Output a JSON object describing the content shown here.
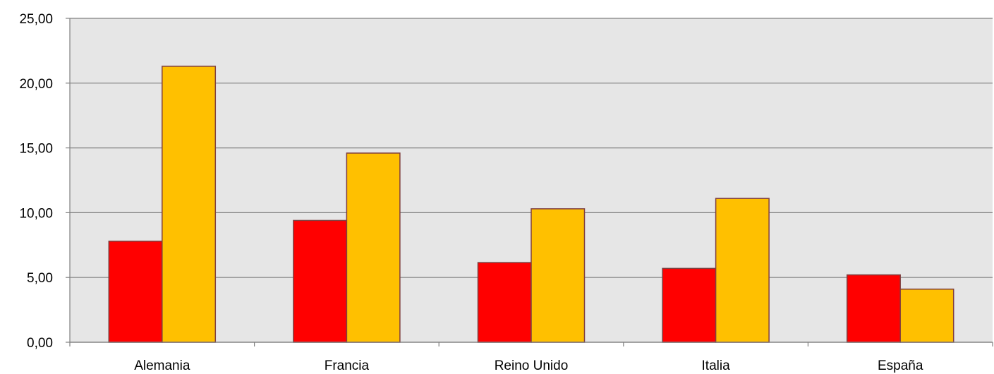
{
  "chart_data": {
    "type": "bar",
    "categories": [
      "Alemania",
      "Francia",
      "Reino Unido",
      "Italia",
      "España"
    ],
    "series": [
      {
        "values": [
          7.8,
          9.4,
          6.15,
          5.7,
          5.2
        ],
        "color": "#FF0000"
      },
      {
        "values": [
          21.3,
          14.6,
          10.3,
          11.1,
          4.1
        ],
        "color": "#FFC000"
      }
    ],
    "y_ticks": [
      "0,00",
      "5,00",
      "10,00",
      "15,00",
      "20,00",
      "25,00"
    ],
    "ylim": [
      0,
      25
    ],
    "grid": true,
    "legend": "none",
    "colors": {
      "plot_background": "#E6E6E6",
      "gridline": "#808080",
      "bar_border": "#7F3F3F"
    }
  }
}
